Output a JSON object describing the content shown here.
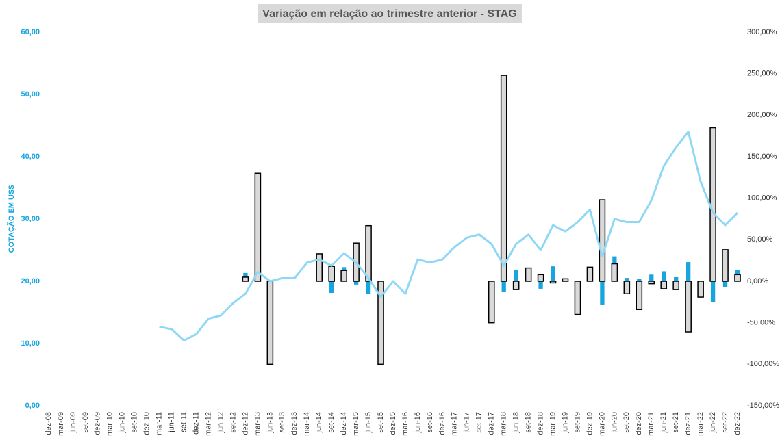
{
  "chart_data": {
    "type": "bar_line",
    "title": "Variação em relação ao trimestre anterior - STAG",
    "y_label": "COTAÇÃO EM US$",
    "categories": [
      "dez-08",
      "mar-09",
      "jun-09",
      "set-09",
      "dez-09",
      "mar-10",
      "jun-10",
      "set-10",
      "dez-10",
      "mar-11",
      "jun-11",
      "set-11",
      "dez-11",
      "mar-12",
      "jun-12",
      "set-12",
      "dez-12",
      "mar-13",
      "jun-13",
      "set-13",
      "dez-13",
      "mar-14",
      "jun-14",
      "set-14",
      "dez-14",
      "mar-15",
      "jun-15",
      "set-15",
      "dez-15",
      "mar-16",
      "jun-16",
      "set-16",
      "dez-16",
      "mar-17",
      "jun-17",
      "set-17",
      "dez-17",
      "mar-18",
      "jun-18",
      "set-18",
      "dez-18",
      "mar-19",
      "jun-19",
      "set-19",
      "dez-19",
      "mar-20",
      "jun-20",
      "set-20",
      "dez-20",
      "mar-21",
      "jun-21",
      "set-21",
      "dez-21",
      "mar-22",
      "jun-22",
      "set-22",
      "dez-22"
    ],
    "series": [
      {
        "type": "bar",
        "color": "#17a5e0",
        "axis": "y2",
        "values": [
          null,
          null,
          null,
          null,
          null,
          null,
          null,
          null,
          null,
          null,
          null,
          null,
          null,
          null,
          null,
          null,
          10,
          17,
          -8,
          null,
          null,
          null,
          0,
          -14,
          17,
          -4,
          -15,
          -10,
          null,
          null,
          null,
          null,
          null,
          null,
          null,
          null,
          null,
          -13,
          14,
          null,
          -9,
          18,
          null,
          0,
          7,
          -28,
          30,
          4,
          3,
          8,
          12,
          5,
          23,
          -12,
          -25,
          -7,
          14
        ]
      },
      {
        "type": "bar",
        "color": "#d9d9d9",
        "stroke": "#000000",
        "axis": "y2",
        "values": [
          null,
          null,
          null,
          null,
          null,
          null,
          null,
          null,
          null,
          null,
          null,
          null,
          null,
          null,
          null,
          null,
          5,
          130,
          -100,
          null,
          null,
          null,
          33,
          18,
          13,
          46,
          67,
          -100,
          null,
          null,
          null,
          null,
          null,
          null,
          null,
          null,
          -50,
          248,
          -10,
          16,
          8,
          -2,
          3,
          -40,
          17,
          98,
          21,
          -15,
          -34,
          -3,
          -9,
          -10,
          -61,
          -19,
          185,
          38,
          8
        ]
      },
      {
        "type": "line",
        "color": "#8fd8f5",
        "axis": "y",
        "values": [
          null,
          null,
          null,
          null,
          null,
          null,
          null,
          null,
          null,
          12.7,
          12.3,
          10.5,
          11.5,
          14.0,
          14.5,
          16.5,
          18.0,
          21.5,
          20.0,
          20.5,
          20.5,
          23.0,
          23.5,
          22.5,
          24.5,
          23.0,
          20.5,
          17.5,
          20.0,
          18.0,
          23.5,
          23.0,
          23.5,
          25.5,
          27.0,
          27.5,
          26.0,
          22.5,
          26.0,
          27.5,
          25.0,
          29.0,
          28.0,
          29.5,
          31.5,
          24.0,
          30.0,
          29.5,
          29.5,
          33.0,
          38.5,
          41.5,
          44.0,
          36.0,
          31.0,
          29.0,
          31.0
        ]
      }
    ],
    "ylim": [
      0,
      60
    ],
    "yticks": [
      {
        "value": 0,
        "label": "0,00"
      },
      {
        "value": 10,
        "label": "10,00"
      },
      {
        "value": 20,
        "label": "20,00"
      },
      {
        "value": 30,
        "label": "30,00"
      },
      {
        "value": 40,
        "label": "40,00"
      },
      {
        "value": 50,
        "label": "50,00"
      },
      {
        "value": 60,
        "label": "60,00"
      }
    ],
    "y2lim": [
      -150,
      300
    ],
    "y2ticks": [
      {
        "value": -150,
        "label": "-150,00%"
      },
      {
        "value": -100,
        "label": "-100,00%"
      },
      {
        "value": -50,
        "label": "-50,00%"
      },
      {
        "value": 0,
        "label": "0,00%"
      },
      {
        "value": 50,
        "label": "50,00%"
      },
      {
        "value": 100,
        "label": "100,00%"
      },
      {
        "value": 150,
        "label": "150,00%"
      },
      {
        "value": 200,
        "label": "200,00%"
      },
      {
        "value": 250,
        "label": "250,00%"
      },
      {
        "value": 300,
        "label": "300,00%"
      }
    ]
  }
}
